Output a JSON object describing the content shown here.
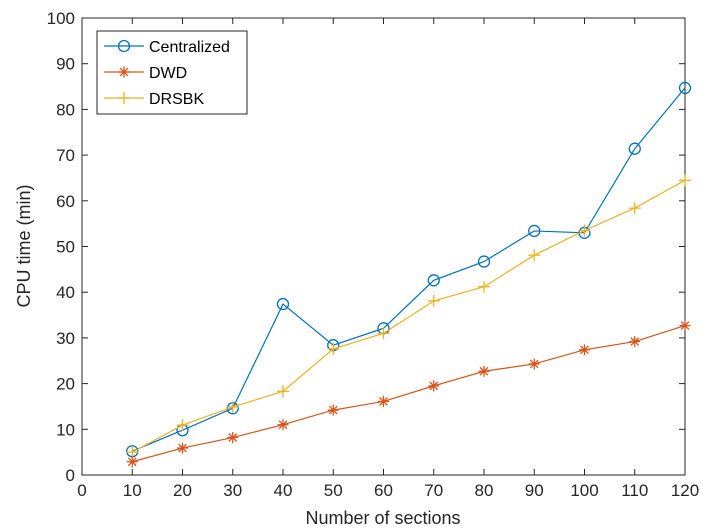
{
  "chart_data": {
    "type": "line",
    "title": "",
    "xlabel": "Number of sections",
    "ylabel": "CPU time (min)",
    "xlim": [
      0,
      120
    ],
    "ylim": [
      0,
      100
    ],
    "xticks": [
      0,
      10,
      20,
      30,
      40,
      50,
      60,
      70,
      80,
      90,
      100,
      110,
      120
    ],
    "yticks": [
      0,
      10,
      20,
      30,
      40,
      50,
      60,
      70,
      80,
      90,
      100
    ],
    "grid": false,
    "legend_position": "top-left",
    "x": [
      10,
      20,
      30,
      40,
      50,
      60,
      70,
      80,
      90,
      100,
      110,
      120
    ],
    "series": [
      {
        "name": "Centralized",
        "color": "#0072BD",
        "marker": "circle",
        "values": [
          5.2,
          9.8,
          14.6,
          37.4,
          28.4,
          32.1,
          42.6,
          46.7,
          53.4,
          53.0,
          71.4,
          84.7
        ]
      },
      {
        "name": "DWD",
        "color": "#D95319",
        "marker": "asterisk",
        "values": [
          2.9,
          5.9,
          8.2,
          11.0,
          14.2,
          16.1,
          19.5,
          22.7,
          24.3,
          27.4,
          29.2,
          32.7
        ]
      },
      {
        "name": "DRSBK",
        "color": "#EDB120",
        "marker": "plus",
        "values": [
          5.0,
          10.9,
          14.9,
          18.3,
          27.6,
          31.0,
          38.1,
          41.2,
          48.1,
          53.5,
          58.4,
          64.5
        ]
      }
    ]
  }
}
